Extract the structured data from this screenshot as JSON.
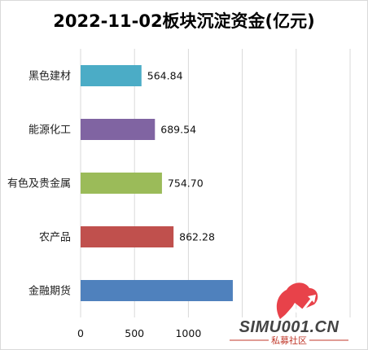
{
  "chart_data": {
    "type": "bar",
    "orientation": "horizontal",
    "title": "2022-11-02板块沉淀资金(亿元)",
    "categories": [
      "黑色建材",
      "能源化工",
      "有色及贵金属",
      "农产品",
      "金融期货"
    ],
    "values": [
      564.84,
      689.54,
      754.7,
      862.28,
      1412
    ],
    "value_labels": [
      "564.84",
      "689.54",
      "754.70",
      "862.28",
      ""
    ],
    "bar_colors": [
      "#4bacc6",
      "#8064a2",
      "#9bbb59",
      "#c0504d",
      "#4f81bd"
    ],
    "xlim": [
      0,
      2500
    ],
    "xticks_shown": [
      "0",
      "500",
      "1000"
    ],
    "grid": true,
    "xlabel": "",
    "ylabel": ""
  },
  "watermark": {
    "text": "SIMU001.CN",
    "subtext": "私募社区",
    "logo_color": "#e8424a"
  }
}
